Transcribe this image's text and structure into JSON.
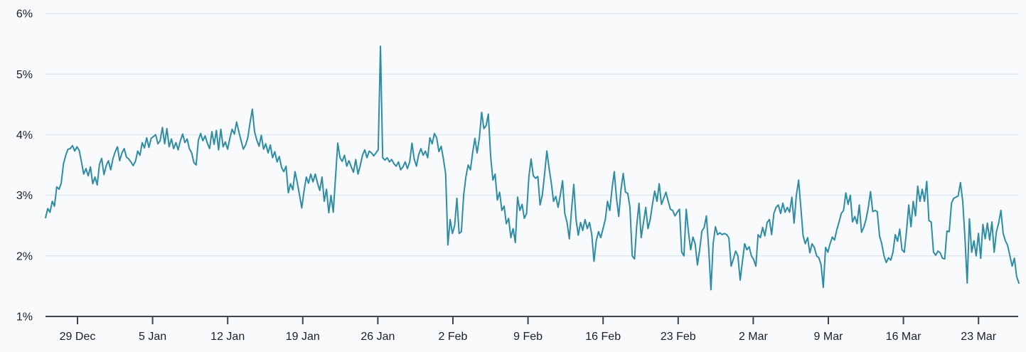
{
  "chart_data": {
    "type": "line",
    "title": "",
    "xlabel": "",
    "ylabel": "",
    "unit": "%",
    "grid": "horizontal",
    "legend": "none",
    "ylim": [
      1,
      6
    ],
    "y_tick_labels": [
      "1%",
      "2%",
      "3%",
      "4%",
      "5%",
      "6%"
    ],
    "x_tick_labels": [
      "29 Dec",
      "5 Jan",
      "12 Jan",
      "19 Jan",
      "26 Jan",
      "2 Feb",
      "9 Feb",
      "16 Feb",
      "23 Feb",
      "2 Mar",
      "9 Mar",
      "16 Mar",
      "23 Mar"
    ],
    "x_tick_interval": "7 days",
    "series_extends_beyond_ticks": "line starts ~3 days before first tick and ends ~4 days after last tick",
    "notable_points": {
      "spike_max": 5.46,
      "spike_near_tick": "26 Jan",
      "minimum": 1.44,
      "start_value": 2.63,
      "end_value": 1.55
    },
    "values": [
      2.63,
      2.78,
      2.72,
      2.9,
      2.82,
      3.14,
      3.1,
      3.2,
      3.52,
      3.66,
      3.76,
      3.77,
      3.82,
      3.73,
      3.8,
      3.74,
      3.55,
      3.35,
      3.44,
      3.32,
      3.47,
      3.19,
      3.3,
      3.17,
      3.51,
      3.61,
      3.34,
      3.49,
      3.57,
      3.42,
      3.6,
      3.72,
      3.8,
      3.57,
      3.7,
      3.77,
      3.63,
      3.6,
      3.55,
      3.49,
      3.56,
      3.73,
      3.66,
      3.87,
      3.78,
      3.95,
      3.79,
      3.94,
      3.97,
      4.0,
      3.85,
      3.9,
      4.12,
      3.85,
      4.1,
      3.8,
      3.93,
      3.77,
      3.87,
      3.75,
      3.9,
      4.01,
      3.87,
      3.93,
      3.77,
      3.7,
      3.54,
      3.5,
      3.91,
      4.02,
      3.9,
      3.98,
      3.86,
      3.77,
      4.05,
      3.84,
      4.07,
      3.75,
      4.09,
      3.8,
      3.88,
      3.76,
      3.94,
      4.09,
      4.01,
      4.21,
      4.05,
      3.9,
      3.76,
      3.83,
      3.95,
      4.2,
      4.42,
      4.05,
      3.91,
      3.81,
      3.99,
      3.76,
      3.85,
      3.7,
      3.83,
      3.62,
      3.72,
      3.55,
      3.64,
      3.46,
      3.39,
      3.48,
      3.04,
      3.19,
      3.09,
      3.39,
      3.21,
      3.0,
      2.79,
      3.07,
      3.3,
      3.2,
      3.35,
      3.22,
      3.35,
      3.2,
      3.08,
      3.3,
      2.9,
      3.1,
      2.71,
      3.0,
      2.72,
      3.3,
      3.86,
      3.62,
      3.56,
      3.66,
      3.48,
      3.57,
      3.47,
      3.38,
      3.59,
      3.35,
      3.49,
      3.66,
      3.75,
      3.62,
      3.73,
      3.7,
      3.65,
      3.7,
      3.75,
      5.46,
      3.62,
      3.58,
      3.62,
      3.55,
      3.59,
      3.52,
      3.48,
      3.55,
      3.42,
      3.47,
      3.55,
      3.44,
      3.55,
      3.86,
      3.6,
      3.48,
      3.67,
      3.77,
      3.66,
      3.73,
      3.62,
      3.95,
      3.85,
      4.02,
      3.95,
      3.72,
      3.81,
      3.6,
      3.35,
      2.18,
      2.6,
      2.37,
      2.5,
      2.95,
      2.37,
      2.4,
      3.0,
      3.3,
      3.5,
      3.42,
      3.7,
      3.94,
      3.7,
      3.95,
      4.37,
      4.1,
      4.15,
      4.34,
      3.65,
      3.25,
      3.35,
      2.92,
      3.05,
      2.75,
      2.82,
      2.53,
      2.62,
      2.3,
      2.45,
      2.22,
      2.97,
      2.75,
      2.85,
      2.62,
      2.7,
      3.3,
      3.6,
      3.32,
      3.28,
      3.31,
      2.84,
      3.0,
      3.35,
      3.73,
      3.45,
      3.2,
      2.9,
      2.98,
      2.8,
      3.0,
      3.24,
      2.7,
      2.55,
      2.28,
      2.75,
      3.18,
      2.6,
      2.34,
      2.55,
      2.42,
      2.6,
      2.45,
      2.55,
      2.35,
      1.91,
      2.25,
      2.4,
      2.3,
      2.45,
      2.6,
      2.9,
      2.75,
      3.1,
      3.39,
      2.95,
      2.65,
      3.1,
      3.36,
      3.05,
      3.03,
      2.8,
      2.0,
      1.95,
      2.5,
      2.87,
      2.3,
      2.55,
      2.8,
      2.45,
      2.6,
      2.85,
      3.07,
      2.9,
      3.19,
      2.85,
      2.95,
      3.05,
      2.9,
      2.77,
      2.75,
      2.66,
      2.72,
      2.77,
      2.06,
      2.0,
      2.77,
      2.4,
      2.1,
      2.31,
      2.2,
      1.85,
      2.1,
      2.41,
      2.47,
      2.66,
      2.13,
      1.44,
      2.2,
      2.48,
      2.35,
      2.38,
      2.35,
      2.37,
      2.35,
      2.3,
      1.83,
      1.95,
      2.08,
      2.0,
      1.6,
      1.9,
      2.2,
      2.1,
      2.15,
      2.0,
      1.94,
      1.83,
      2.35,
      2.3,
      2.47,
      2.33,
      2.55,
      2.6,
      2.35,
      2.7,
      2.8,
      2.84,
      2.7,
      2.87,
      2.72,
      2.8,
      2.72,
      2.97,
      2.54,
      3.0,
      3.25,
      2.8,
      2.33,
      2.2,
      2.3,
      2.05,
      2.2,
      2.14,
      2.0,
      1.97,
      1.85,
      1.48,
      2.14,
      2.06,
      2.2,
      2.31,
      2.26,
      2.43,
      2.56,
      2.7,
      2.75,
      3.04,
      2.85,
      3.0,
      2.56,
      2.65,
      2.53,
      2.84,
      2.39,
      2.47,
      2.6,
      2.8,
      3.06,
      2.73,
      2.75,
      2.73,
      2.33,
      2.2,
      2.0,
      1.89,
      1.97,
      1.93,
      2.06,
      2.35,
      2.24,
      2.44,
      2.1,
      2.06,
      2.4,
      2.84,
      2.48,
      2.9,
      2.66,
      3.15,
      2.9,
      3.1,
      2.9,
      3.23,
      2.58,
      2.56,
      2.06,
      2.01,
      2.08,
      2.05,
      1.96,
      1.95,
      2.41,
      2.4,
      2.87,
      2.95,
      2.97,
      2.99,
      3.21,
      2.9,
      2.3,
      1.55,
      2.61,
      2.06,
      2.25,
      2.0,
      2.37,
      1.96,
      2.52,
      2.28,
      2.54,
      2.26,
      2.56,
      2.06,
      2.4,
      2.54,
      2.75,
      2.37,
      2.25,
      2.17,
      2.0,
      1.83,
      1.96,
      1.66,
      1.55
    ]
  },
  "colors": {
    "background": "#f8fafc",
    "gridline": "#dfe9f4",
    "axis": "#3f4650",
    "text": "#1b2026",
    "line": "#2e8ca4"
  }
}
